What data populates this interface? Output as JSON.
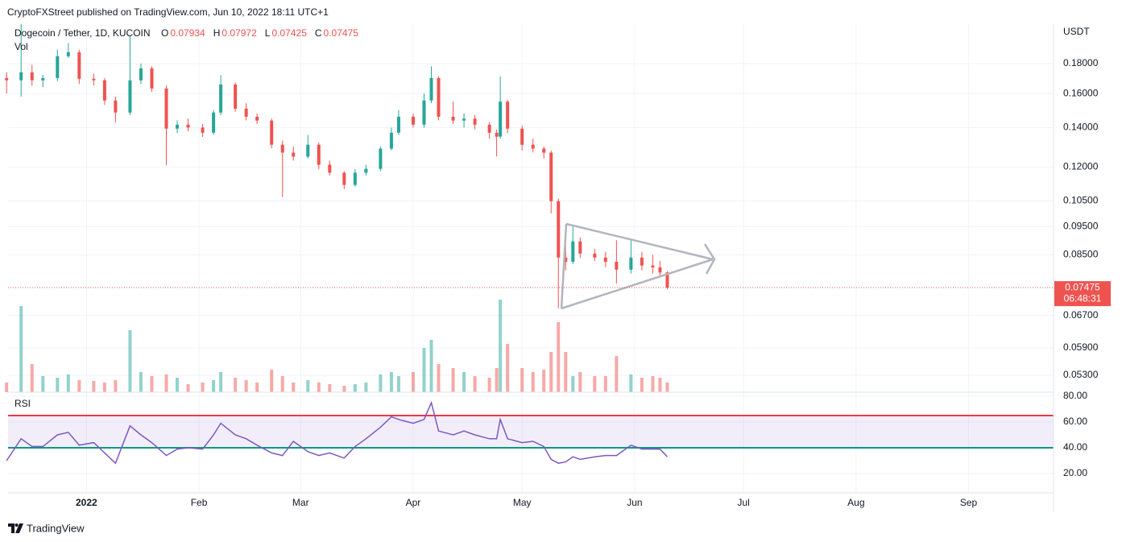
{
  "publisher": "CryptoFXStreet published on TradingView.com, Jun 10, 2022 18:11 UTC+1",
  "footer": "TradingView",
  "chart_data": {
    "type": "candlestick",
    "title": "Dogecoin / Tether, 1D, KUCOIN",
    "ohlc_labels": [
      "O",
      "H",
      "L",
      "C"
    ],
    "currency": "USDT",
    "volume_label": "Vol",
    "countdown": "06:48:31",
    "up_color": "#26a69a",
    "down_color": "#ef5350",
    "x": [
      -22,
      -18,
      -15,
      -12,
      -8,
      -5,
      -2,
      2,
      5,
      8,
      12,
      15,
      18,
      22,
      25,
      28,
      32,
      35,
      37,
      41,
      44,
      47,
      51,
      54,
      57,
      61,
      64,
      67,
      71,
      74,
      77,
      81,
      84,
      86,
      90,
      93,
      95,
      97,
      101,
      104,
      107,
      111,
      113,
      114,
      116,
      120,
      123,
      126,
      128,
      130,
      132,
      134,
      136,
      140,
      143,
      146,
      150,
      153,
      156,
      158,
      160
    ],
    "open": [
      0.17,
      0.1685,
      0.1739,
      0.1685,
      0.17,
      0.1852,
      0.1881,
      0.1695,
      0.1685,
      0.1557,
      0.1485,
      0.1685,
      0.1766,
      0.1632,
      0.1394,
      0.1416,
      0.14,
      0.1372,
      0.1485,
      0.1658,
      0.1508,
      0.1461,
      0.1439,
      0.1309,
      0.1269,
      0.1249,
      0.1309,
      0.121,
      0.1173,
      0.1118,
      0.1173,
      0.1191,
      0.1289,
      0.1372,
      0.1461,
      0.1416,
      0.1557,
      0.17,
      0.1461,
      0.1439,
      0.145,
      0.1416,
      0.1372,
      0.1351,
      0.155,
      0.1394,
      0.1309,
      0.1289,
      0.1269,
      0.1049,
      0.0841,
      0.0827,
      0.0896,
      0.0854,
      0.0841,
      0.0827,
      0.0802,
      0.0841,
      0.0815,
      0.0809,
      0.07934
    ],
    "high": [
      0.174,
      0.2101,
      0.179,
      0.172,
      0.19,
      0.195,
      0.19,
      0.173,
      0.17,
      0.158,
      0.2004,
      0.18,
      0.178,
      0.165,
      0.144,
      0.145,
      0.142,
      0.15,
      0.172,
      0.167,
      0.154,
      0.148,
      0.145,
      0.133,
      0.13,
      0.136,
      0.132,
      0.123,
      0.118,
      0.119,
      0.121,
      0.13,
      0.14,
      0.15,
      0.148,
      0.16,
      0.178,
      0.171,
      0.155,
      0.148,
      0.147,
      0.143,
      0.139,
      0.1711,
      0.156,
      0.141,
      0.134,
      0.13,
      0.128,
      0.106,
      0.088,
      0.095,
      0.091,
      0.087,
      0.086,
      0.09,
      0.09,
      0.086,
      0.085,
      0.083,
      0.07972
    ],
    "low": [
      0.16,
      0.158,
      0.165,
      0.164,
      0.168,
      0.184,
      0.166,
      0.165,
      0.153,
      0.143,
      0.147,
      0.166,
      0.161,
      0.1209,
      0.137,
      0.138,
      0.135,
      0.136,
      0.147,
      0.149,
      0.144,
      0.142,
      0.129,
      0.1066,
      0.123,
      0.124,
      0.119,
      0.116,
      0.11,
      0.111,
      0.116,
      0.118,
      0.128,
      0.136,
      0.14,
      0.14,
      0.154,
      0.144,
      0.142,
      0.14,
      0.139,
      0.134,
      0.125,
      0.134,
      0.137,
      0.128,
      0.127,
      0.124,
      0.1,
      0.0689,
      0.08,
      0.082,
      0.084,
      0.083,
      0.081,
      0.076,
      0.079,
      0.08,
      0.079,
      0.078,
      0.07425
    ],
    "close": [
      0.1685,
      0.1739,
      0.1685,
      0.17,
      0.1852,
      0.1881,
      0.1695,
      0.1685,
      0.1557,
      0.1485,
      0.1685,
      0.1766,
      0.1632,
      0.1394,
      0.1416,
      0.14,
      0.1372,
      0.1485,
      0.1658,
      0.1508,
      0.1461,
      0.1439,
      0.1309,
      0.1269,
      0.1249,
      0.1309,
      0.121,
      0.1173,
      0.1118,
      0.1173,
      0.1191,
      0.1289,
      0.1372,
      0.1461,
      0.1416,
      0.1557,
      0.17,
      0.1461,
      0.1439,
      0.145,
      0.1416,
      0.1372,
      0.1351,
      0.155,
      0.1394,
      0.1309,
      0.1289,
      0.1269,
      0.1049,
      0.0841,
      0.0827,
      0.0896,
      0.0854,
      0.0841,
      0.0827,
      0.0802,
      0.0841,
      0.0815,
      0.0809,
      0.0793,
      0.07475
    ],
    "volume": [
      12,
      107,
      35,
      20,
      18,
      22,
      15,
      14,
      12,
      15,
      77,
      25,
      20,
      22,
      18,
      10,
      12,
      15,
      25,
      18,
      15,
      12,
      28,
      20,
      12,
      15,
      12,
      10,
      8,
      10,
      12,
      22,
      25,
      20,
      25,
      55,
      65,
      35,
      30,
      25,
      20,
      18,
      30,
      115,
      60,
      30,
      25,
      28,
      50,
      87,
      50,
      20,
      25,
      20,
      20,
      45,
      22,
      18,
      20,
      18,
      12
    ],
    "vlim": [
      0,
      120
    ],
    "xlim": [
      -21.6,
      266.4
    ],
    "xticks": [
      {
        "value": 0,
        "label": "2022"
      },
      {
        "value": 31,
        "label": "Feb"
      },
      {
        "value": 59,
        "label": "Mar"
      },
      {
        "value": 90,
        "label": "Apr"
      },
      {
        "value": 120,
        "label": "May"
      },
      {
        "value": 151,
        "label": "Jun"
      },
      {
        "value": 181,
        "label": "Jul"
      },
      {
        "value": 212,
        "label": "Aug"
      },
      {
        "value": 243,
        "label": "Sep"
      }
    ],
    "yscale": "log",
    "ylim": [
      0.0496,
      0.21
    ],
    "yticks": [
      {
        "value": 0.18,
        "label": "0.18000"
      },
      {
        "value": 0.16,
        "label": "0.16000"
      },
      {
        "value": 0.14,
        "label": "0.14000"
      },
      {
        "value": 0.12,
        "label": "0.12000"
      },
      {
        "value": 0.105,
        "label": "0.10500"
      },
      {
        "value": 0.095,
        "label": "0.09500"
      },
      {
        "value": 0.085,
        "label": "0.08500"
      },
      {
        "value": 0.067,
        "label": "0.06700"
      },
      {
        "value": 0.059,
        "label": "0.05900"
      },
      {
        "value": 0.053,
        "label": "0.05300"
      }
    ],
    "grid": true,
    "rsi": {
      "label": "RSI",
      "color": "#7e57c2",
      "values": [
        30,
        47,
        41,
        41,
        50,
        52,
        42,
        44,
        36,
        28,
        57,
        50,
        44,
        34,
        39,
        40,
        39,
        50,
        59,
        50,
        47,
        42,
        36,
        34,
        45,
        37,
        34,
        36,
        32,
        41,
        47,
        56,
        64,
        62,
        59,
        62,
        75,
        53,
        50,
        53,
        50,
        47,
        47,
        62,
        47,
        44,
        45,
        41,
        31,
        28,
        29,
        33,
        31,
        33,
        34,
        34,
        42,
        39,
        39,
        39,
        33
      ],
      "ylim": [
        5,
        82.5
      ],
      "yticks": [
        {
          "value": 80,
          "label": "80.00"
        },
        {
          "value": 60,
          "label": "60.00"
        },
        {
          "value": 40,
          "label": "40.00"
        },
        {
          "value": 20,
          "label": "20.00"
        }
      ],
      "upper": 65,
      "upper_color": "#f23645",
      "lower": 40,
      "lower_color": "#089981"
    }
  }
}
